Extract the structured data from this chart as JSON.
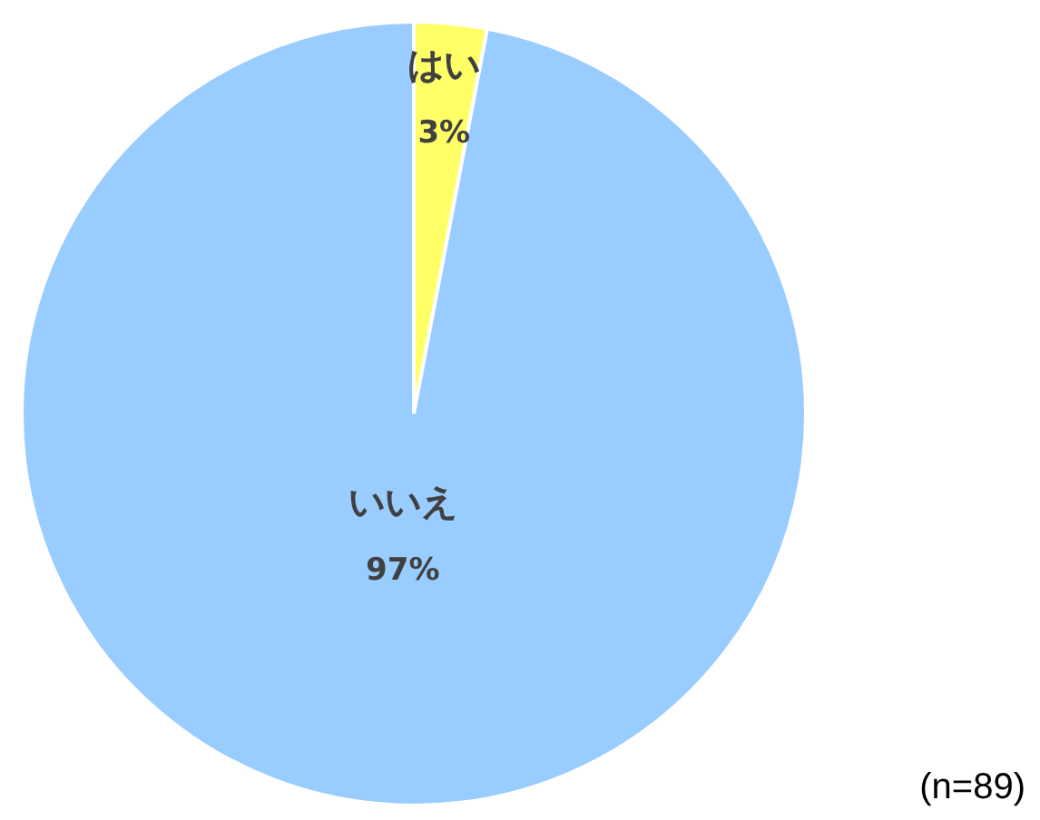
{
  "chart_data": {
    "type": "pie",
    "categories": [
      "はい",
      "いいえ"
    ],
    "values": [
      3,
      97
    ],
    "colors": [
      "#ffff66",
      "#99ccff"
    ],
    "value_labels": [
      "3%",
      "97%"
    ],
    "annotations": [
      "(n=89)"
    ]
  }
}
